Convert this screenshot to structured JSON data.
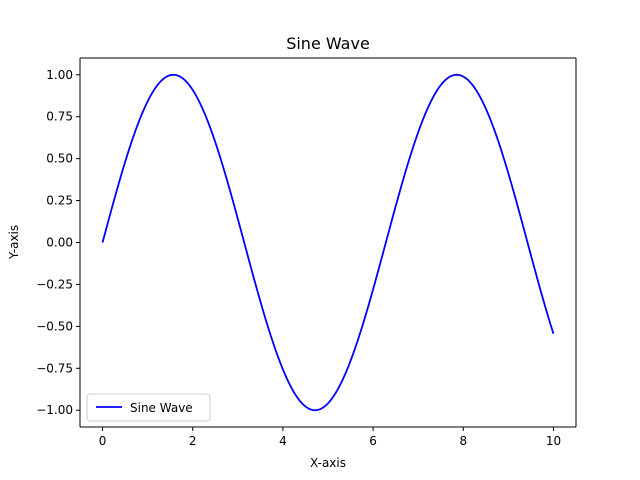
{
  "chart_data": {
    "type": "line",
    "title": "Sine Wave",
    "xlabel": "X-axis",
    "ylabel": "Y-axis",
    "xlim": [
      -0.5,
      10.5
    ],
    "ylim": [
      -1.1,
      1.1
    ],
    "xticks": [
      0,
      2,
      4,
      6,
      8,
      10
    ],
    "xtick_labels": [
      "0",
      "2",
      "4",
      "6",
      "8",
      "10"
    ],
    "yticks": [
      -1.0,
      -0.75,
      -0.5,
      -0.25,
      0.0,
      0.25,
      0.5,
      0.75,
      1.0
    ],
    "ytick_labels": [
      "−1.00",
      "−0.75",
      "−0.50",
      "−0.25",
      "0.00",
      "0.25",
      "0.50",
      "0.75",
      "1.00"
    ],
    "grid": false,
    "legend_placement": "lower-left",
    "series": [
      {
        "name": "Sine Wave",
        "color": "#0000ff",
        "function": "sin(x)",
        "x": [
          0,
          0.2,
          0.4,
          0.6,
          0.8,
          1.0,
          1.2,
          1.4,
          1.6,
          1.8,
          2.0,
          2.2,
          2.4,
          2.6,
          2.8,
          3.0,
          3.2,
          3.4,
          3.6,
          3.8,
          4.0,
          4.2,
          4.4,
          4.6,
          4.8,
          5.0,
          5.2,
          5.4,
          5.6,
          5.8,
          6.0,
          6.2,
          6.4,
          6.6,
          6.8,
          7.0,
          7.2,
          7.4,
          7.6,
          7.8,
          8.0,
          8.2,
          8.4,
          8.6,
          8.8,
          9.0,
          9.2,
          9.4,
          9.6,
          9.8,
          10.0
        ],
        "y": [
          0.0,
          0.199,
          0.389,
          0.565,
          0.717,
          0.841,
          0.932,
          0.985,
          1.0,
          0.974,
          0.909,
          0.808,
          0.675,
          0.516,
          0.335,
          0.141,
          -0.058,
          -0.256,
          -0.443,
          -0.612,
          -0.757,
          -0.872,
          -0.952,
          -0.994,
          -0.996,
          -0.959,
          -0.883,
          -0.773,
          -0.631,
          -0.465,
          -0.279,
          -0.083,
          0.117,
          0.312,
          0.494,
          0.657,
          0.794,
          0.899,
          0.968,
          0.999,
          0.989,
          0.941,
          0.855,
          0.734,
          0.585,
          0.412,
          0.223,
          0.025,
          -0.174,
          -0.366,
          -0.544
        ]
      }
    ]
  }
}
